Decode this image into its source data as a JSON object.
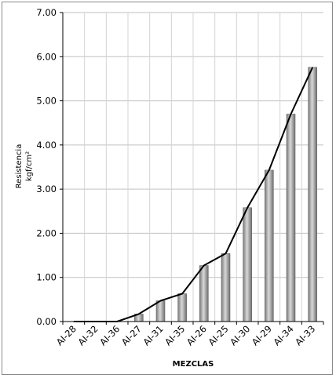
{
  "chart_data": {
    "type": "bar",
    "categories": [
      "AI-28",
      "AI-32",
      "AI-36",
      "AI-27",
      "AI-31",
      "AI-35",
      "AI-26",
      "AI-25",
      "AI-30",
      "AI-29",
      "AI-34",
      "AI-33"
    ],
    "series": [
      {
        "type": "bar",
        "values": [
          0.0,
          0.0,
          0.0,
          0.17,
          0.47,
          0.63,
          1.27,
          1.54,
          2.58,
          3.43,
          4.7,
          5.76
        ]
      },
      {
        "type": "line",
        "values": [
          0.0,
          0.0,
          0.0,
          0.17,
          0.47,
          0.63,
          1.27,
          1.54,
          2.58,
          3.43,
          4.7,
          5.76
        ]
      }
    ],
    "ylabel_line1": "Resistencia",
    "ylabel_line2": "kgf/cm²",
    "xlabel": "MEZCLAS",
    "ylim": [
      0,
      7
    ],
    "yticks": [
      "0.00",
      "1.00",
      "2.00",
      "3.00",
      "4.00",
      "5.00",
      "6.00",
      "7.00"
    ],
    "grid": true,
    "colors": {
      "bar": "#a6a6a6",
      "line": "#000000",
      "grid": "#c0c0c0"
    }
  }
}
